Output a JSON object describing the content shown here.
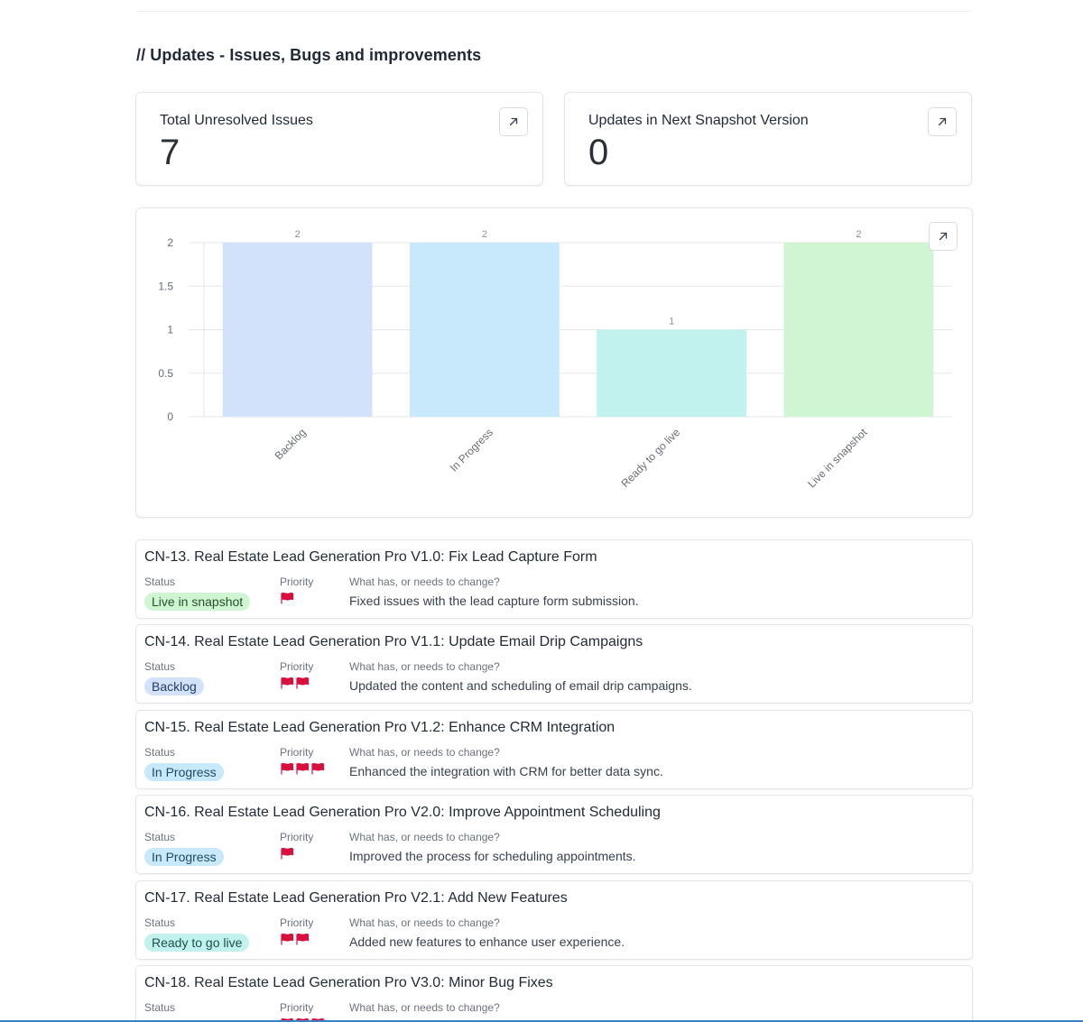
{
  "section": {
    "title": "// Updates - Issues, Bugs and improvements"
  },
  "stats": [
    {
      "label": "Total Unresolved Issues",
      "value": "7",
      "button_icon": "arrow-up-right-icon"
    },
    {
      "label": "Updates in Next Snapshot Version",
      "value": "0",
      "button_icon": "arrow-up-right-icon"
    }
  ],
  "chart_data": {
    "type": "bar",
    "title": "",
    "xlabel": "",
    "ylabel": "",
    "categories": [
      "Backlog",
      "In Progress",
      "Ready to go live",
      "Live in snapshot"
    ],
    "values": [
      2,
      2,
      1,
      2
    ],
    "data_labels": [
      "2",
      "2",
      "1",
      "2"
    ],
    "colors": [
      "#d3e2fb",
      "#c8e9fb",
      "#c2f2ed",
      "#d0f5d3"
    ],
    "ylim": [
      0,
      2
    ],
    "yticks": [
      0,
      0.5,
      1,
      1.5,
      2
    ],
    "ytick_labels": [
      "0",
      "0.5",
      "1",
      "1.5",
      "2"
    ],
    "grid": true,
    "legend": "none"
  },
  "field_labels": {
    "status": "Status",
    "priority": "Priority",
    "change": "What has, or needs to change?"
  },
  "status_colors": {
    "Live in snapshot": {
      "bg": "#d0f5d3",
      "fg": "#24512b"
    },
    "Backlog": {
      "bg": "#d3e2fb",
      "fg": "#243b63"
    },
    "In Progress": {
      "bg": "#c8e9fb",
      "fg": "#1d4a63"
    },
    "Ready to go live": {
      "bg": "#c2f2ed",
      "fg": "#1e4f4a"
    }
  },
  "flag_color": "#d90f3d",
  "issues": [
    {
      "title": "CN-13. Real Estate Lead Generation Pro V1.0: Fix Lead Capture Form",
      "status": "Live in snapshot",
      "priority": 1,
      "change": "Fixed issues with the lead capture form submission."
    },
    {
      "title": "CN-14. Real Estate Lead Generation Pro V1.1: Update Email Drip Campaigns",
      "status": "Backlog",
      "priority": 2,
      "change": "Updated the content and scheduling of email drip campaigns."
    },
    {
      "title": "CN-15. Real Estate Lead Generation Pro V1.2: Enhance CRM Integration",
      "status": "In Progress",
      "priority": 3,
      "change": "Enhanced the integration with CRM for better data sync."
    },
    {
      "title": "CN-16. Real Estate Lead Generation Pro V2.0: Improve Appointment Scheduling",
      "status": "In Progress",
      "priority": 1,
      "change": "Improved the process for scheduling appointments."
    },
    {
      "title": "CN-17. Real Estate Lead Generation Pro V2.1: Add New Features",
      "status": "Ready to go live",
      "priority": 2,
      "change": "Added new features to enhance user experience."
    },
    {
      "title": "CN-18. Real Estate Lead Generation Pro V3.0: Minor Bug Fixes",
      "status": "",
      "priority": 3,
      "change": ""
    }
  ]
}
